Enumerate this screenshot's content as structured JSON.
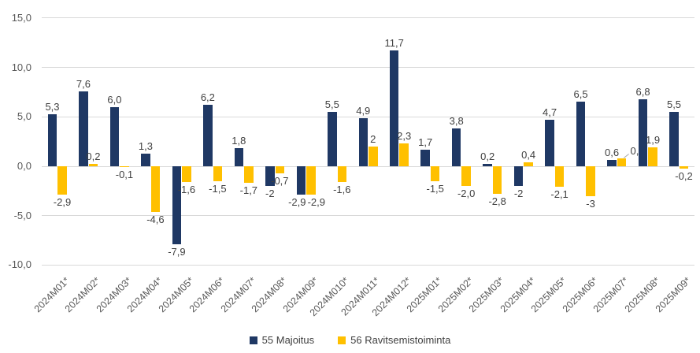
{
  "chart_data": {
    "type": "bar",
    "title": "",
    "xlabel": "",
    "ylabel": "",
    "categories": [
      "2024M01*",
      "2024M02*",
      "2024M03*",
      "2024M04*",
      "2024M05*",
      "2024M06*",
      "2024M07*",
      "2024M08*",
      "2024M09*",
      "2024M010*",
      "2024M011*",
      "2024M012*",
      "2025M01*",
      "2025M02*",
      "2025M03*",
      "2025M04*",
      "2025M05*",
      "2025M06*",
      "2025M07*",
      "2025M08*",
      "2025M09*"
    ],
    "series": [
      {
        "name": "55 Majoitus",
        "color": "#1F3864",
        "values": [
          5.3,
          7.6,
          6.0,
          1.3,
          -7.9,
          6.2,
          1.8,
          -2,
          -2.9,
          5.5,
          4.9,
          11.7,
          1.7,
          3.8,
          0.2,
          -2,
          4.7,
          6.5,
          0.6,
          6.8,
          5.5
        ],
        "labels": [
          "5,3",
          "7,6",
          "6,0",
          "1,3",
          "-7,9",
          "6,2",
          "1,8",
          "-2",
          "-2,9",
          "5,5",
          "4,9",
          "11,7",
          "1,7",
          "3,8",
          "0,2",
          "-2",
          "4,7",
          "6,5",
          "0,6",
          "6,8",
          "5,5"
        ]
      },
      {
        "name": "56 Ravitsemistoiminta",
        "color": "#FFC000",
        "values": [
          -2.9,
          0.2,
          -0.1,
          -4.6,
          -1.6,
          -1.5,
          -1.7,
          -0.7,
          -2.9,
          -1.6,
          2,
          2.3,
          -1.5,
          -2.0,
          -2.8,
          0.4,
          -2.1,
          -3,
          0.8,
          1.9,
          -0.2
        ],
        "labels": [
          "-2,9",
          "0,2",
          "-0,1",
          "-4,6",
          "-1,6",
          "-1,5",
          "-1,7",
          "-0,7",
          "-2,9",
          "-1,6",
          "2",
          "2,3",
          "-1,5",
          "-2,0",
          "-2,8",
          "0,4",
          "-2,1",
          "-3",
          "0,8",
          "1,9",
          "-0,2"
        ]
      }
    ],
    "y_axis": {
      "min": -10,
      "max": 15,
      "ticks": [
        15,
        10,
        5,
        0,
        -5,
        -10
      ],
      "tick_labels": [
        "15,0",
        "10,0",
        "5,0",
        "0,0",
        "-5,0",
        "-10,0"
      ],
      "grid": true
    },
    "legend": {
      "position": "bottom",
      "entries": [
        "55 Majoitus",
        "56 Ravitsemistoiminta"
      ]
    },
    "colors": {
      "background": "#FFFFFF",
      "gridline": "#D9D9D9",
      "axis_text": "#595959",
      "value_label_text": "#404040",
      "series_majoitus": "#1F3864",
      "series_ravitsemistoiminta": "#FFC000"
    }
  }
}
